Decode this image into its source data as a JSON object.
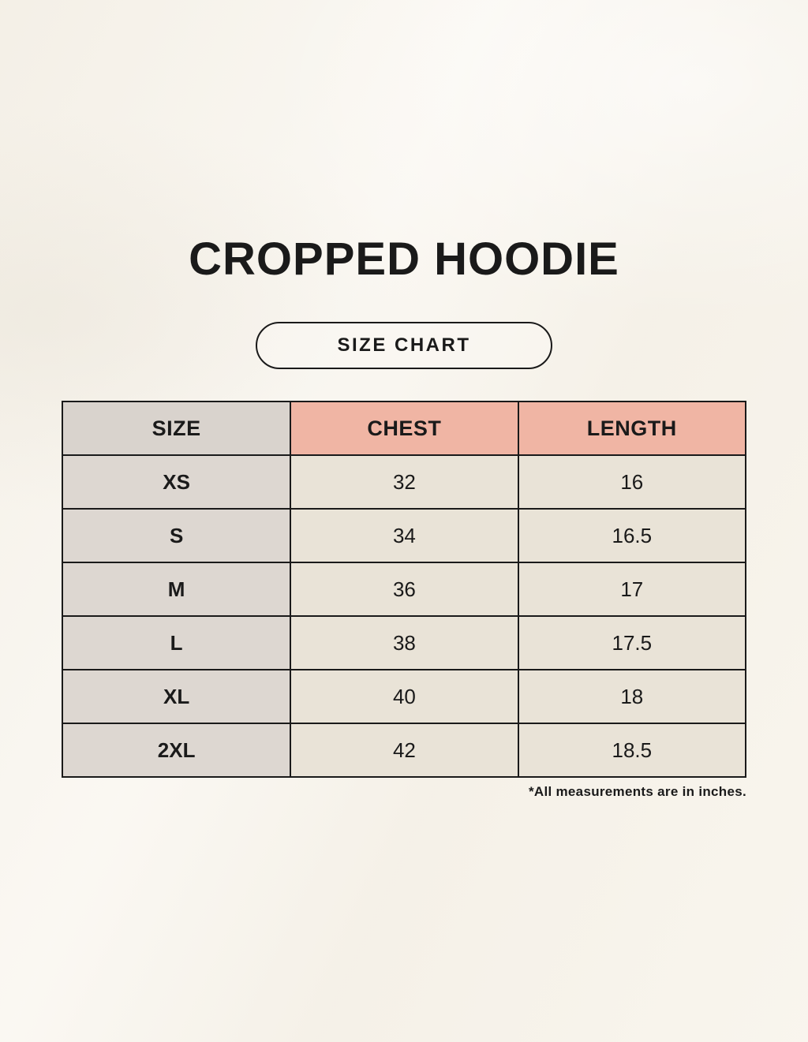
{
  "page": {
    "title": "CROPPED HOODIE",
    "badge_label": "SIZE CHART",
    "footnote": "*All measurements are in inches."
  },
  "colors": {
    "background": "#f8f4ec",
    "header_pink": "#f0b5a4",
    "size_column_gray": "#ddd7d1",
    "data_cell_cream": "#e9e3d7",
    "border": "#1a1a1a",
    "text": "#1a1a1a"
  },
  "chart_data": {
    "type": "table",
    "title": "CROPPED HOODIE",
    "subtitle": "SIZE CHART",
    "unit": "inches",
    "columns": [
      "SIZE",
      "CHEST",
      "LENGTH"
    ],
    "rows": [
      {
        "size": "XS",
        "chest": "32",
        "length": "16"
      },
      {
        "size": "S",
        "chest": "34",
        "length": "16.5"
      },
      {
        "size": "M",
        "chest": "36",
        "length": "17"
      },
      {
        "size": "L",
        "chest": "38",
        "length": "17.5"
      },
      {
        "size": "XL",
        "chest": "40",
        "length": "18"
      },
      {
        "size": "2XL",
        "chest": "42",
        "length": "18.5"
      }
    ],
    "note": "*All measurements are in inches."
  }
}
